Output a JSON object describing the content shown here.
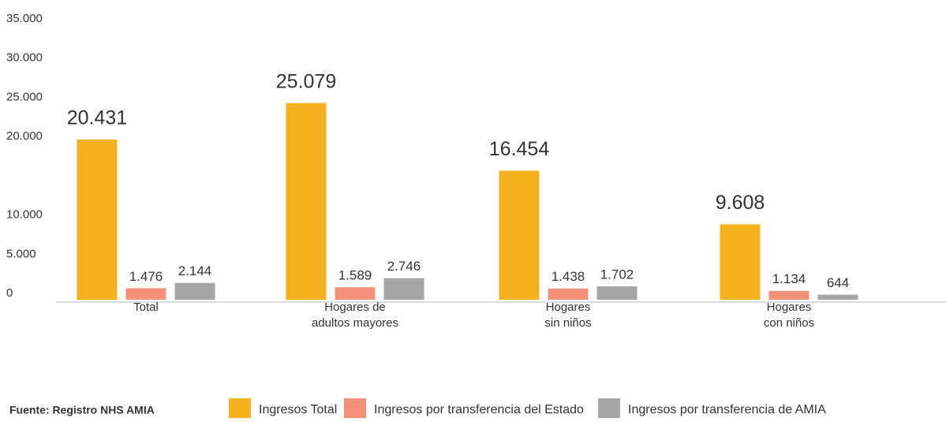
{
  "chart_data": {
    "type": "bar",
    "categories": [
      [
        "Total"
      ],
      [
        "Hogares de",
        "adultos mayores"
      ],
      [
        "Hogares",
        "sin niños"
      ],
      [
        "Hogares",
        "con niños"
      ]
    ],
    "series": [
      {
        "name": "Ingresos Total",
        "color": "#f5b21e",
        "values": [
          20431,
          25079,
          16454,
          9608
        ],
        "value_labels": [
          "20.431",
          "25.079",
          "16.454",
          "9.608"
        ]
      },
      {
        "name": "Ingresos por transferencia del Estado",
        "color": "#f4917a",
        "values": [
          1476,
          1589,
          1438,
          1134
        ],
        "value_labels": [
          "1.476",
          "1.589",
          "1.438",
          "1.134"
        ]
      },
      {
        "name": "Ingresos por transferencia de AMIA",
        "color": "#a6a6a6",
        "values": [
          2144,
          2746,
          1702,
          644
        ],
        "value_labels": [
          "2.144",
          "2.746",
          "1.702",
          "644"
        ]
      }
    ],
    "ylim": [
      0,
      35000
    ],
    "yticks": [
      0,
      {
        "value": 5000,
        "label": "5.000"
      },
      {
        "value": 10000,
        "label": "10.000"
      },
      {
        "value": 20000,
        "label": "20.000"
      },
      {
        "value": 25000,
        "label": "25.000"
      },
      {
        "value": 30000,
        "label": "30.000"
      },
      {
        "value": 35000,
        "label": "35.000"
      }
    ],
    "grid": false,
    "legend": "bottom",
    "source": "Fuente: Registro NHS AMIA"
  }
}
